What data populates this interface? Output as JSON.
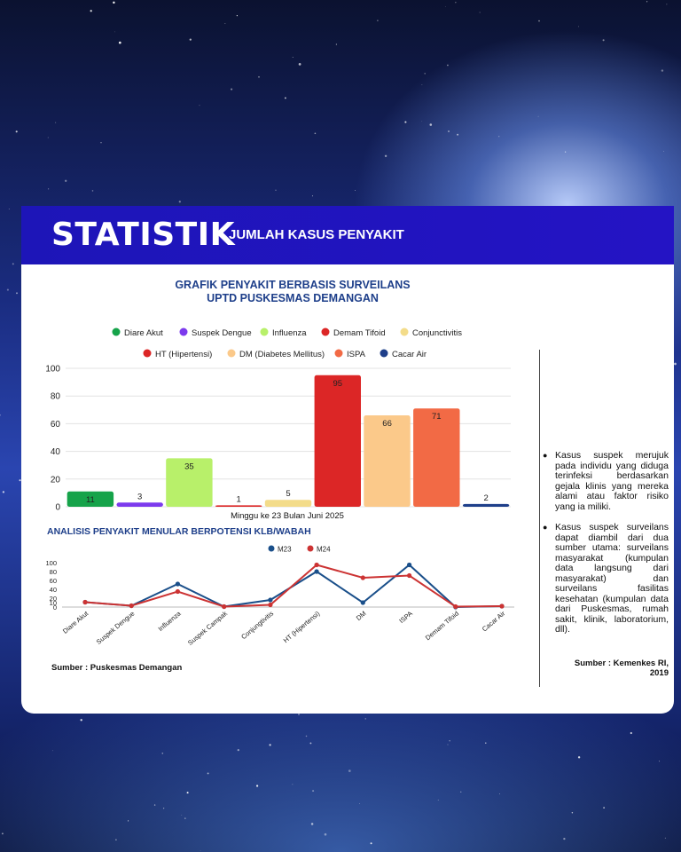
{
  "banner": {
    "title": "STATISTIK",
    "subtitle": "JUMLAH KASUS PENYAKIT"
  },
  "colors": {
    "banner": "#2414c4",
    "title_blue": "#1e3f8a",
    "m23": "#1a4f8a",
    "m24": "#cc3333"
  },
  "notes": [
    "Kasus suspek merujuk pada individu yang diduga terinfeksi berdasarkan gejala klinis yang mereka alami atau faktor risiko yang ia miliki.",
    "Kasus suspek surveilans dapat diambil dari dua sumber utama: surveilans masyarakat (kumpulan data langsung dari masyarakat) dan surveilans fasilitas kesehatan (kumpulan data dari Puskesmas, rumah sakit, klinik, laboratorium, dll)."
  ],
  "source_right": "Sumber : Kemenkes RI, 2019",
  "source_left": "Sumber : Puskesmas Demangan",
  "chart_data": [
    {
      "type": "bar",
      "title": "GRAFIK PENYAKIT BERBASIS SURVEILANS",
      "subtitle": "UPTD PUSKESMAS DEMANGAN",
      "xlabel": "Minggu ke 23 Bulan Juni 2025",
      "ylabel": "",
      "ylim": [
        0,
        100
      ],
      "yticks": [
        0,
        20,
        40,
        60,
        80,
        100
      ],
      "grid": true,
      "legend": "top",
      "categories": [
        "Diare Akut",
        "Suspek Dengue",
        "Influenza",
        "Demam Tifoid",
        "Conjunctivitis",
        "HT (Hipertensi)",
        "DM (Diabetes Mellitus)",
        "ISPA",
        "Cacar Air"
      ],
      "values": [
        11,
        3,
        35,
        1,
        5,
        95,
        66,
        71,
        2
      ],
      "colors": [
        "#16a34a",
        "#7c3aed",
        "#b8f06a",
        "#dc2626",
        "#f3dc8a",
        "#dc2626",
        "#fbc98a",
        "#f26a45",
        "#1e3f8a"
      ]
    },
    {
      "type": "line",
      "title": "ANALISIS  PENYAKIT MENULAR  BERPOTENSI KLB/WABAH",
      "legend": "top",
      "ylim": [
        0,
        100
      ],
      "yticks": [
        0,
        10,
        20,
        40,
        60,
        80,
        100
      ],
      "categories": [
        "Diare Akut",
        "Suspek Dengue",
        "Influenza",
        "Suspek Campak",
        "Conjungtivitis",
        "HT (Hipertensi)",
        "DM",
        "ISPA",
        "Demam Tifoid",
        "Cacar Air"
      ],
      "series": [
        {
          "name": "M23",
          "color": "#1a4f8a",
          "values": [
            11,
            3,
            52,
            1,
            16,
            80,
            10,
            95,
            0,
            2
          ]
        },
        {
          "name": "M24",
          "color": "#cc3333",
          "values": [
            11,
            3,
            35,
            1,
            5,
            95,
            66,
            71,
            1,
            2
          ]
        }
      ]
    }
  ]
}
